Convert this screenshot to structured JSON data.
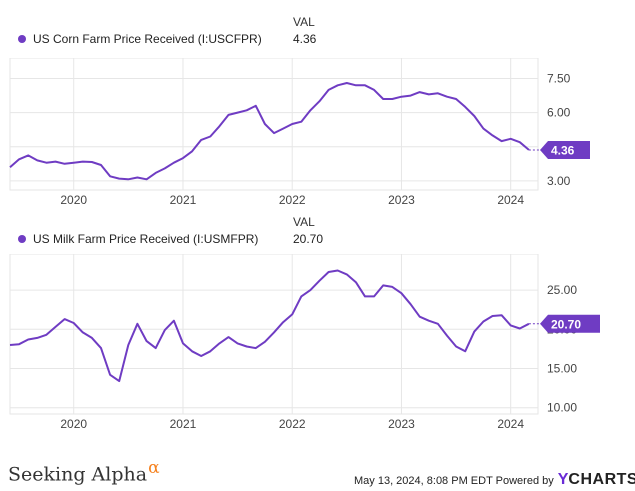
{
  "footer": {
    "brand_left": "Seeking Alpha",
    "alpha_symbol": "α",
    "timestamp": "May 13, 2024, 8:08 PM EDT Powered by",
    "brand_right_y": "Y",
    "brand_right": "CHARTS"
  },
  "colors": {
    "series": "#6f3cc3",
    "grid": "#e6e6e6",
    "axis_text": "#444444"
  },
  "chart_data": [
    {
      "type": "line",
      "legend_header": "VAL",
      "series": [
        {
          "name": "US Corn Farm Price Received (I:USCFPR)",
          "last_value": "4.36",
          "x": [
            "2019-06",
            "2019-07",
            "2019-08",
            "2019-09",
            "2019-10",
            "2019-11",
            "2019-12",
            "2020-01",
            "2020-02",
            "2020-03",
            "2020-04",
            "2020-05",
            "2020-06",
            "2020-07",
            "2020-08",
            "2020-09",
            "2020-10",
            "2020-11",
            "2020-12",
            "2021-01",
            "2021-02",
            "2021-03",
            "2021-04",
            "2021-05",
            "2021-06",
            "2021-07",
            "2021-08",
            "2021-09",
            "2021-10",
            "2021-11",
            "2021-12",
            "2022-01",
            "2022-02",
            "2022-03",
            "2022-04",
            "2022-05",
            "2022-06",
            "2022-07",
            "2022-08",
            "2022-09",
            "2022-10",
            "2022-11",
            "2022-12",
            "2023-01",
            "2023-02",
            "2023-03",
            "2023-04",
            "2023-05",
            "2023-06",
            "2023-07",
            "2023-08",
            "2023-09",
            "2023-10",
            "2023-11",
            "2023-12",
            "2024-01",
            "2024-02",
            "2024-03"
          ],
          "values": [
            3.6,
            3.95,
            4.12,
            3.9,
            3.8,
            3.85,
            3.75,
            3.8,
            3.85,
            3.83,
            3.7,
            3.2,
            3.1,
            3.07,
            3.15,
            3.07,
            3.35,
            3.55,
            3.8,
            4.0,
            4.3,
            4.8,
            4.95,
            5.4,
            5.9,
            6.0,
            6.1,
            6.3,
            5.5,
            5.1,
            5.3,
            5.5,
            5.6,
            6.1,
            6.5,
            7.0,
            7.2,
            7.3,
            7.2,
            7.2,
            7.0,
            6.6,
            6.6,
            6.7,
            6.75,
            6.9,
            6.8,
            6.85,
            6.7,
            6.6,
            6.25,
            5.85,
            5.3,
            5.0,
            4.75,
            4.85,
            4.7,
            4.36
          ]
        }
      ],
      "xticks": [
        "2020",
        "2021",
        "2022",
        "2023",
        "2024"
      ],
      "yticks": [
        "3.00",
        "4.50",
        "6.00",
        "7.50"
      ],
      "ylim": [
        2.6,
        8.4
      ],
      "xlim": [
        "2019-06",
        "2024-04"
      ],
      "grid": true
    },
    {
      "type": "line",
      "legend_header": "VAL",
      "series": [
        {
          "name": "US Milk Farm Price Received (I:USMFPR)",
          "last_value": "20.70",
          "x": [
            "2019-06",
            "2019-07",
            "2019-08",
            "2019-09",
            "2019-10",
            "2019-11",
            "2019-12",
            "2020-01",
            "2020-02",
            "2020-03",
            "2020-04",
            "2020-05",
            "2020-06",
            "2020-07",
            "2020-08",
            "2020-09",
            "2020-10",
            "2020-11",
            "2020-12",
            "2021-01",
            "2021-02",
            "2021-03",
            "2021-04",
            "2021-05",
            "2021-06",
            "2021-07",
            "2021-08",
            "2021-09",
            "2021-10",
            "2021-11",
            "2021-12",
            "2022-01",
            "2022-02",
            "2022-03",
            "2022-04",
            "2022-05",
            "2022-06",
            "2022-07",
            "2022-08",
            "2022-09",
            "2022-10",
            "2022-11",
            "2022-12",
            "2023-01",
            "2023-02",
            "2023-03",
            "2023-04",
            "2023-05",
            "2023-06",
            "2023-07",
            "2023-08",
            "2023-09",
            "2023-10",
            "2023-11",
            "2023-12",
            "2024-01",
            "2024-02",
            "2024-03"
          ],
          "values": [
            18.0,
            18.1,
            18.7,
            18.9,
            19.3,
            20.3,
            21.3,
            20.8,
            19.6,
            18.9,
            17.6,
            14.2,
            13.4,
            18.0,
            20.7,
            18.5,
            17.6,
            19.9,
            21.1,
            18.2,
            17.2,
            16.6,
            17.2,
            18.2,
            19.0,
            18.2,
            17.8,
            17.6,
            18.4,
            19.6,
            20.9,
            21.9,
            24.2,
            25.0,
            26.2,
            27.3,
            27.5,
            27.0,
            26.0,
            24.2,
            24.2,
            25.6,
            25.4,
            24.6,
            23.2,
            21.6,
            21.1,
            20.7,
            19.2,
            17.8,
            17.2,
            19.7,
            21.0,
            21.7,
            21.8,
            20.5,
            20.1,
            20.7
          ]
        }
      ],
      "xticks": [
        "2020",
        "2021",
        "2022",
        "2023",
        "2024"
      ],
      "yticks": [
        "10.00",
        "15.00",
        "20.00",
        "25.00"
      ],
      "ylim": [
        9.2,
        29.6
      ],
      "xlim": [
        "2019-06",
        "2024-04"
      ],
      "grid": true
    }
  ]
}
